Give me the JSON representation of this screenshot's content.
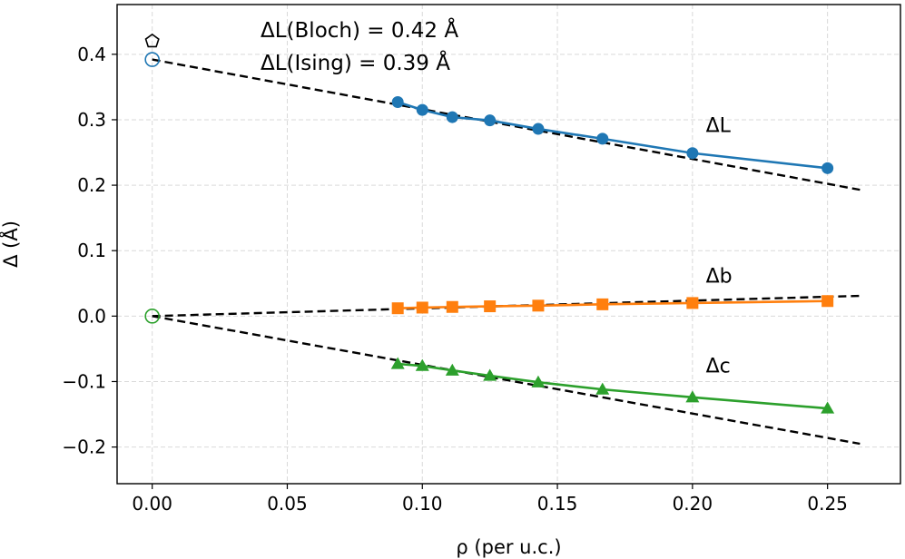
{
  "chart_data": {
    "type": "line",
    "xlabel": "ρ (per u.c.)",
    "ylabel": "Δ (Å)",
    "xlim": [
      -0.013,
      0.277
    ],
    "ylim": [
      -0.256,
      0.476
    ],
    "x_ticks": [
      0.0,
      0.05,
      0.1,
      0.15,
      0.2,
      0.25
    ],
    "x_tick_labels": [
      "0.00",
      "0.05",
      "0.10",
      "0.15",
      "0.20",
      "0.25"
    ],
    "y_ticks": [
      -0.2,
      -0.1,
      0.0,
      0.1,
      0.2,
      0.3,
      0.4
    ],
    "y_tick_labels": [
      "−0.2",
      "−0.1",
      "0.0",
      "0.1",
      "0.2",
      "0.3",
      "0.4"
    ],
    "grid": true,
    "annotations": [
      "ΔL(Bloch) = 0.42 Å",
      "ΔL(Ising) = 0.39 Å"
    ],
    "series": [
      {
        "name": "ΔL",
        "color": "#1f77b4",
        "marker": "circle",
        "x": [
          0.0909,
          0.1,
          0.1111,
          0.125,
          0.1429,
          0.1667,
          0.2,
          0.25
        ],
        "y": [
          0.327,
          0.315,
          0.304,
          0.299,
          0.286,
          0.271,
          0.249,
          0.226
        ]
      },
      {
        "name": "Δb",
        "color": "#ff7f0e",
        "marker": "square",
        "x": [
          0.0909,
          0.1,
          0.1111,
          0.125,
          0.1429,
          0.1667,
          0.2,
          0.25
        ],
        "y": [
          0.012,
          0.013,
          0.014,
          0.015,
          0.016,
          0.018,
          0.02,
          0.023
        ]
      },
      {
        "name": "Δc",
        "color": "#2ca02c",
        "marker": "triangle",
        "x": [
          0.0909,
          0.1,
          0.1111,
          0.125,
          0.1429,
          0.1667,
          0.2,
          0.25
        ],
        "y": [
          -0.073,
          -0.076,
          -0.083,
          -0.091,
          -0.101,
          -0.112,
          -0.124,
          -0.141
        ]
      }
    ],
    "fits": [
      {
        "name": "ΔL linear fit",
        "x": [
          0.0,
          0.262
        ],
        "y": [
          0.392,
          0.193
        ]
      },
      {
        "name": "Δb linear fit",
        "x": [
          0.0,
          0.262
        ],
        "y": [
          0.0,
          0.031
        ]
      },
      {
        "name": "Δc linear fit",
        "x": [
          0.0,
          0.262
        ],
        "y": [
          0.0,
          -0.195
        ]
      }
    ],
    "extrapolated_points": [
      {
        "name": "ΔL(Bloch)",
        "x": 0.0,
        "y": 0.42,
        "marker": "pentagon",
        "color": "#000000"
      },
      {
        "name": "ΔL(Ising)",
        "x": 0.0,
        "y": 0.392,
        "marker": "open-circle",
        "color": "#1f77b4"
      },
      {
        "name": "Δc origin",
        "x": 0.0,
        "y": 0.0,
        "marker": "open-circle",
        "color": "#2ca02c"
      }
    ],
    "series_labels": [
      {
        "text": "ΔL",
        "x": 0.21,
        "y": 0.295
      },
      {
        "text": "Δb",
        "x": 0.21,
        "y": 0.065
      },
      {
        "text": "Δc",
        "x": 0.21,
        "y": -0.072
      }
    ]
  }
}
